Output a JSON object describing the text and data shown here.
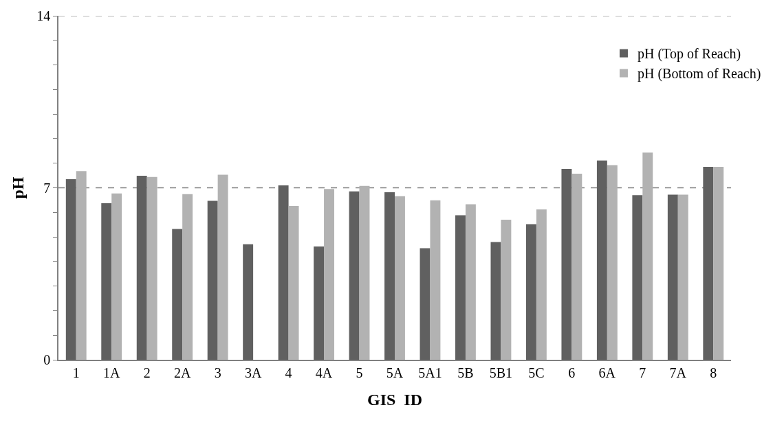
{
  "chart_data": {
    "type": "bar",
    "xlabel": "GIS  ID",
    "ylabel": "pH",
    "categories": [
      "1",
      "1A",
      "2",
      "2A",
      "3",
      "3A",
      "4",
      "4A",
      "5",
      "5A",
      "5A1",
      "5B",
      "5B1",
      "5C",
      "6",
      "6A",
      "7",
      "7A",
      "8"
    ],
    "series": [
      {
        "name": "pH (Top of Reach)",
        "color": "#606060",
        "values": [
          7.35,
          6.37,
          7.49,
          5.32,
          6.47,
          4.7,
          7.1,
          4.61,
          6.85,
          6.82,
          4.54,
          5.88,
          4.79,
          5.52,
          7.77,
          8.11,
          6.7,
          6.72,
          7.85
        ]
      },
      {
        "name": "pH (Bottom of Reach)",
        "color": "#b2b2b2",
        "values": [
          7.68,
          6.77,
          7.44,
          6.74,
          7.53,
          null,
          6.26,
          6.95,
          7.08,
          6.66,
          6.49,
          6.33,
          5.7,
          6.12,
          7.57,
          7.92,
          8.43,
          6.72,
          7.85
        ]
      }
    ],
    "ylim": [
      0,
      14
    ],
    "yticks": [
      0,
      {
        "value": 1,
        "label": null
      },
      {
        "value": 2,
        "label": null
      },
      {
        "value": 3,
        "label": null
      },
      {
        "value": 4,
        "label": null
      },
      {
        "value": 5,
        "label": null
      },
      {
        "value": 6,
        "label": null
      },
      7,
      {
        "value": 8,
        "label": null
      },
      {
        "value": 9,
        "label": null
      },
      {
        "value": 10,
        "label": null
      },
      {
        "value": 11,
        "label": null
      },
      {
        "value": 12,
        "label": null
      },
      {
        "value": 13,
        "label": null
      },
      14
    ],
    "ref_lines": [
      {
        "axis": "y",
        "value": 7,
        "color": "#808080",
        "line_style": "dashed"
      },
      {
        "axis": "y",
        "value": 14,
        "color": "#a0a0a0",
        "line_style": "dashed"
      }
    ],
    "legend": "top right"
  }
}
